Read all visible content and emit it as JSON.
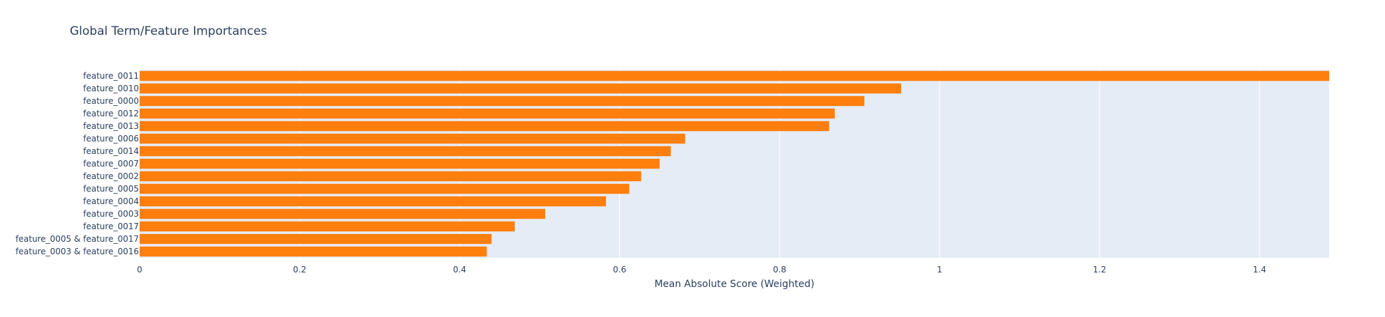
{
  "chart_data": {
    "type": "bar",
    "orientation": "horizontal",
    "title": "Global Term/Feature Importances",
    "xlabel": "Mean Absolute Score (Weighted)",
    "ylabel": "",
    "xlim": [
      0,
      1.487
    ],
    "xticks": [
      0,
      0.2,
      0.4,
      0.6,
      0.8,
      1,
      1.2,
      1.4
    ],
    "xtick_labels": [
      "0",
      "0.2",
      "0.4",
      "0.6",
      "0.8",
      "1",
      "1.2",
      "1.4"
    ],
    "grid": true,
    "legend": "none",
    "bar_color": "#ff7f0e",
    "plot_bg": "#e5ecf6",
    "categories": [
      "feature_0011",
      "feature_0010",
      "feature_0000",
      "feature_0012",
      "feature_0013",
      "feature_0006",
      "feature_0014",
      "feature_0007",
      "feature_0002",
      "feature_0005",
      "feature_0004",
      "feature_0003",
      "feature_0017",
      "feature_0005 & feature_0017",
      "feature_0003 & feature_0016"
    ],
    "values": [
      1.487,
      0.952,
      0.906,
      0.869,
      0.862,
      0.682,
      0.664,
      0.65,
      0.627,
      0.612,
      0.583,
      0.507,
      0.469,
      0.44,
      0.434
    ]
  }
}
